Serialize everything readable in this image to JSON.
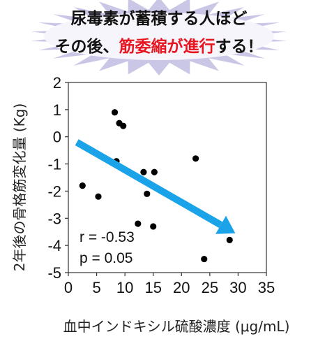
{
  "headline": {
    "line1": "尿毒素が蓄積する人ほど",
    "line2_pre": "その後、",
    "line2_highlight": "筋委縮が進行",
    "line2_post": "する！",
    "highlight_color": "#e8141e",
    "burst_color": "#c9c6e6"
  },
  "chart_data": {
    "type": "scatter",
    "xlabel": "血中インドキシル硫酸濃度 (μg/mL)",
    "ylabel": "2年後の骨格筋変化量 (Kg)",
    "xlim": [
      0,
      35
    ],
    "ylim": [
      -5,
      2
    ],
    "xticks": [
      "0",
      "5",
      "10",
      "15",
      "20",
      "25",
      "30",
      "35"
    ],
    "yticks": [
      "2",
      "1",
      "0",
      "-1",
      "-2",
      "-3",
      "-4",
      "-5"
    ],
    "grid": false,
    "points": [
      {
        "x": 2.5,
        "y": -1.8
      },
      {
        "x": 5.3,
        "y": -2.2
      },
      {
        "x": 8.2,
        "y": 0.9
      },
      {
        "x": 8.5,
        "y": -0.9
      },
      {
        "x": 9.0,
        "y": 0.5
      },
      {
        "x": 9.7,
        "y": 0.4
      },
      {
        "x": 12.3,
        "y": -3.2
      },
      {
        "x": 13.3,
        "y": -1.3
      },
      {
        "x": 13.9,
        "y": -2.1
      },
      {
        "x": 15.0,
        "y": -3.3
      },
      {
        "x": 15.2,
        "y": -1.3
      },
      {
        "x": 22.5,
        "y": -0.8
      },
      {
        "x": 24.0,
        "y": -4.5
      },
      {
        "x": 28.5,
        "y": -3.8
      }
    ],
    "trend_arrow": {
      "x_start": 1.5,
      "y_start": -0.2,
      "x_end": 29.5,
      "y_end": -3.55,
      "color": "#1aa3e8"
    },
    "annotations": {
      "r": "r = -0.53",
      "p": "p = 0.05"
    },
    "point_color": "#000000"
  }
}
